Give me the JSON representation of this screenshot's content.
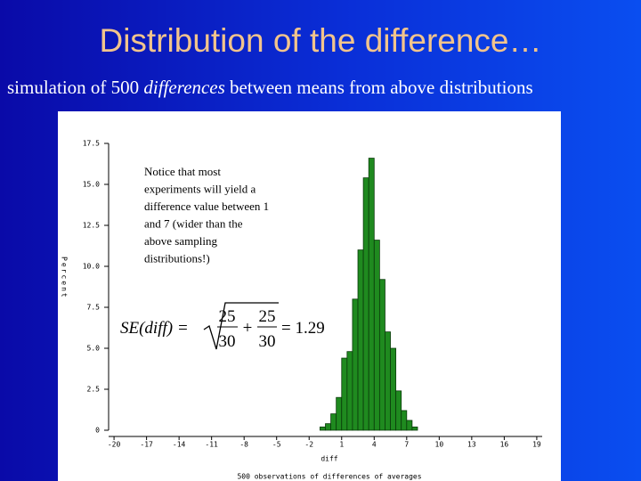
{
  "slide": {
    "title": "Distribution of the difference…",
    "subtitle_parts": [
      "simulation of 500 ",
      "differences",
      " between means from above distributions"
    ]
  },
  "annotation": {
    "lines": [
      "Notice that most",
      "experiments will yield a",
      "difference value between 1",
      "and 7 (wider than the",
      "above sampling",
      "distributions!)"
    ]
  },
  "formula": {
    "lhs": "SE(diff) =",
    "terms": [
      {
        "num": "25",
        "den": "30"
      },
      {
        "num": "25",
        "den": "30"
      }
    ],
    "operator": "+",
    "result": "= 1.29"
  },
  "chart_data": {
    "type": "histogram",
    "bins": [
      -1,
      -0.5,
      0,
      0.5,
      1,
      1.5,
      2,
      2.5,
      3,
      3.5,
      4,
      4.5,
      5,
      5.5,
      6,
      6.5,
      7,
      7.5,
      8
    ],
    "values": [
      0.2,
      0.4,
      1.0,
      2.0,
      4.4,
      4.8,
      8.0,
      11.0,
      15.4,
      16.6,
      11.6,
      9.2,
      6.0,
      5.0,
      2.4,
      1.2,
      0.6,
      0.2
    ],
    "color": "#1f8a1f",
    "xlim": [
      -20.5,
      19.5
    ],
    "xticks": [
      -20,
      -17,
      -14,
      -11,
      -8,
      -5,
      -2,
      1,
      4,
      7,
      10,
      13,
      16,
      19
    ],
    "ylim": [
      0,
      17.5
    ],
    "yticks": [
      0,
      2.5,
      {
        "value": 5,
        "label": "5.0"
      },
      7.5,
      {
        "value": 10,
        "label": "10.0"
      },
      12.5,
      {
        "value": 15,
        "label": "15.0"
      },
      17.5
    ],
    "ylabel": "Percent",
    "xlabel": "diff",
    "caption": "500 observations of differences of averages"
  }
}
